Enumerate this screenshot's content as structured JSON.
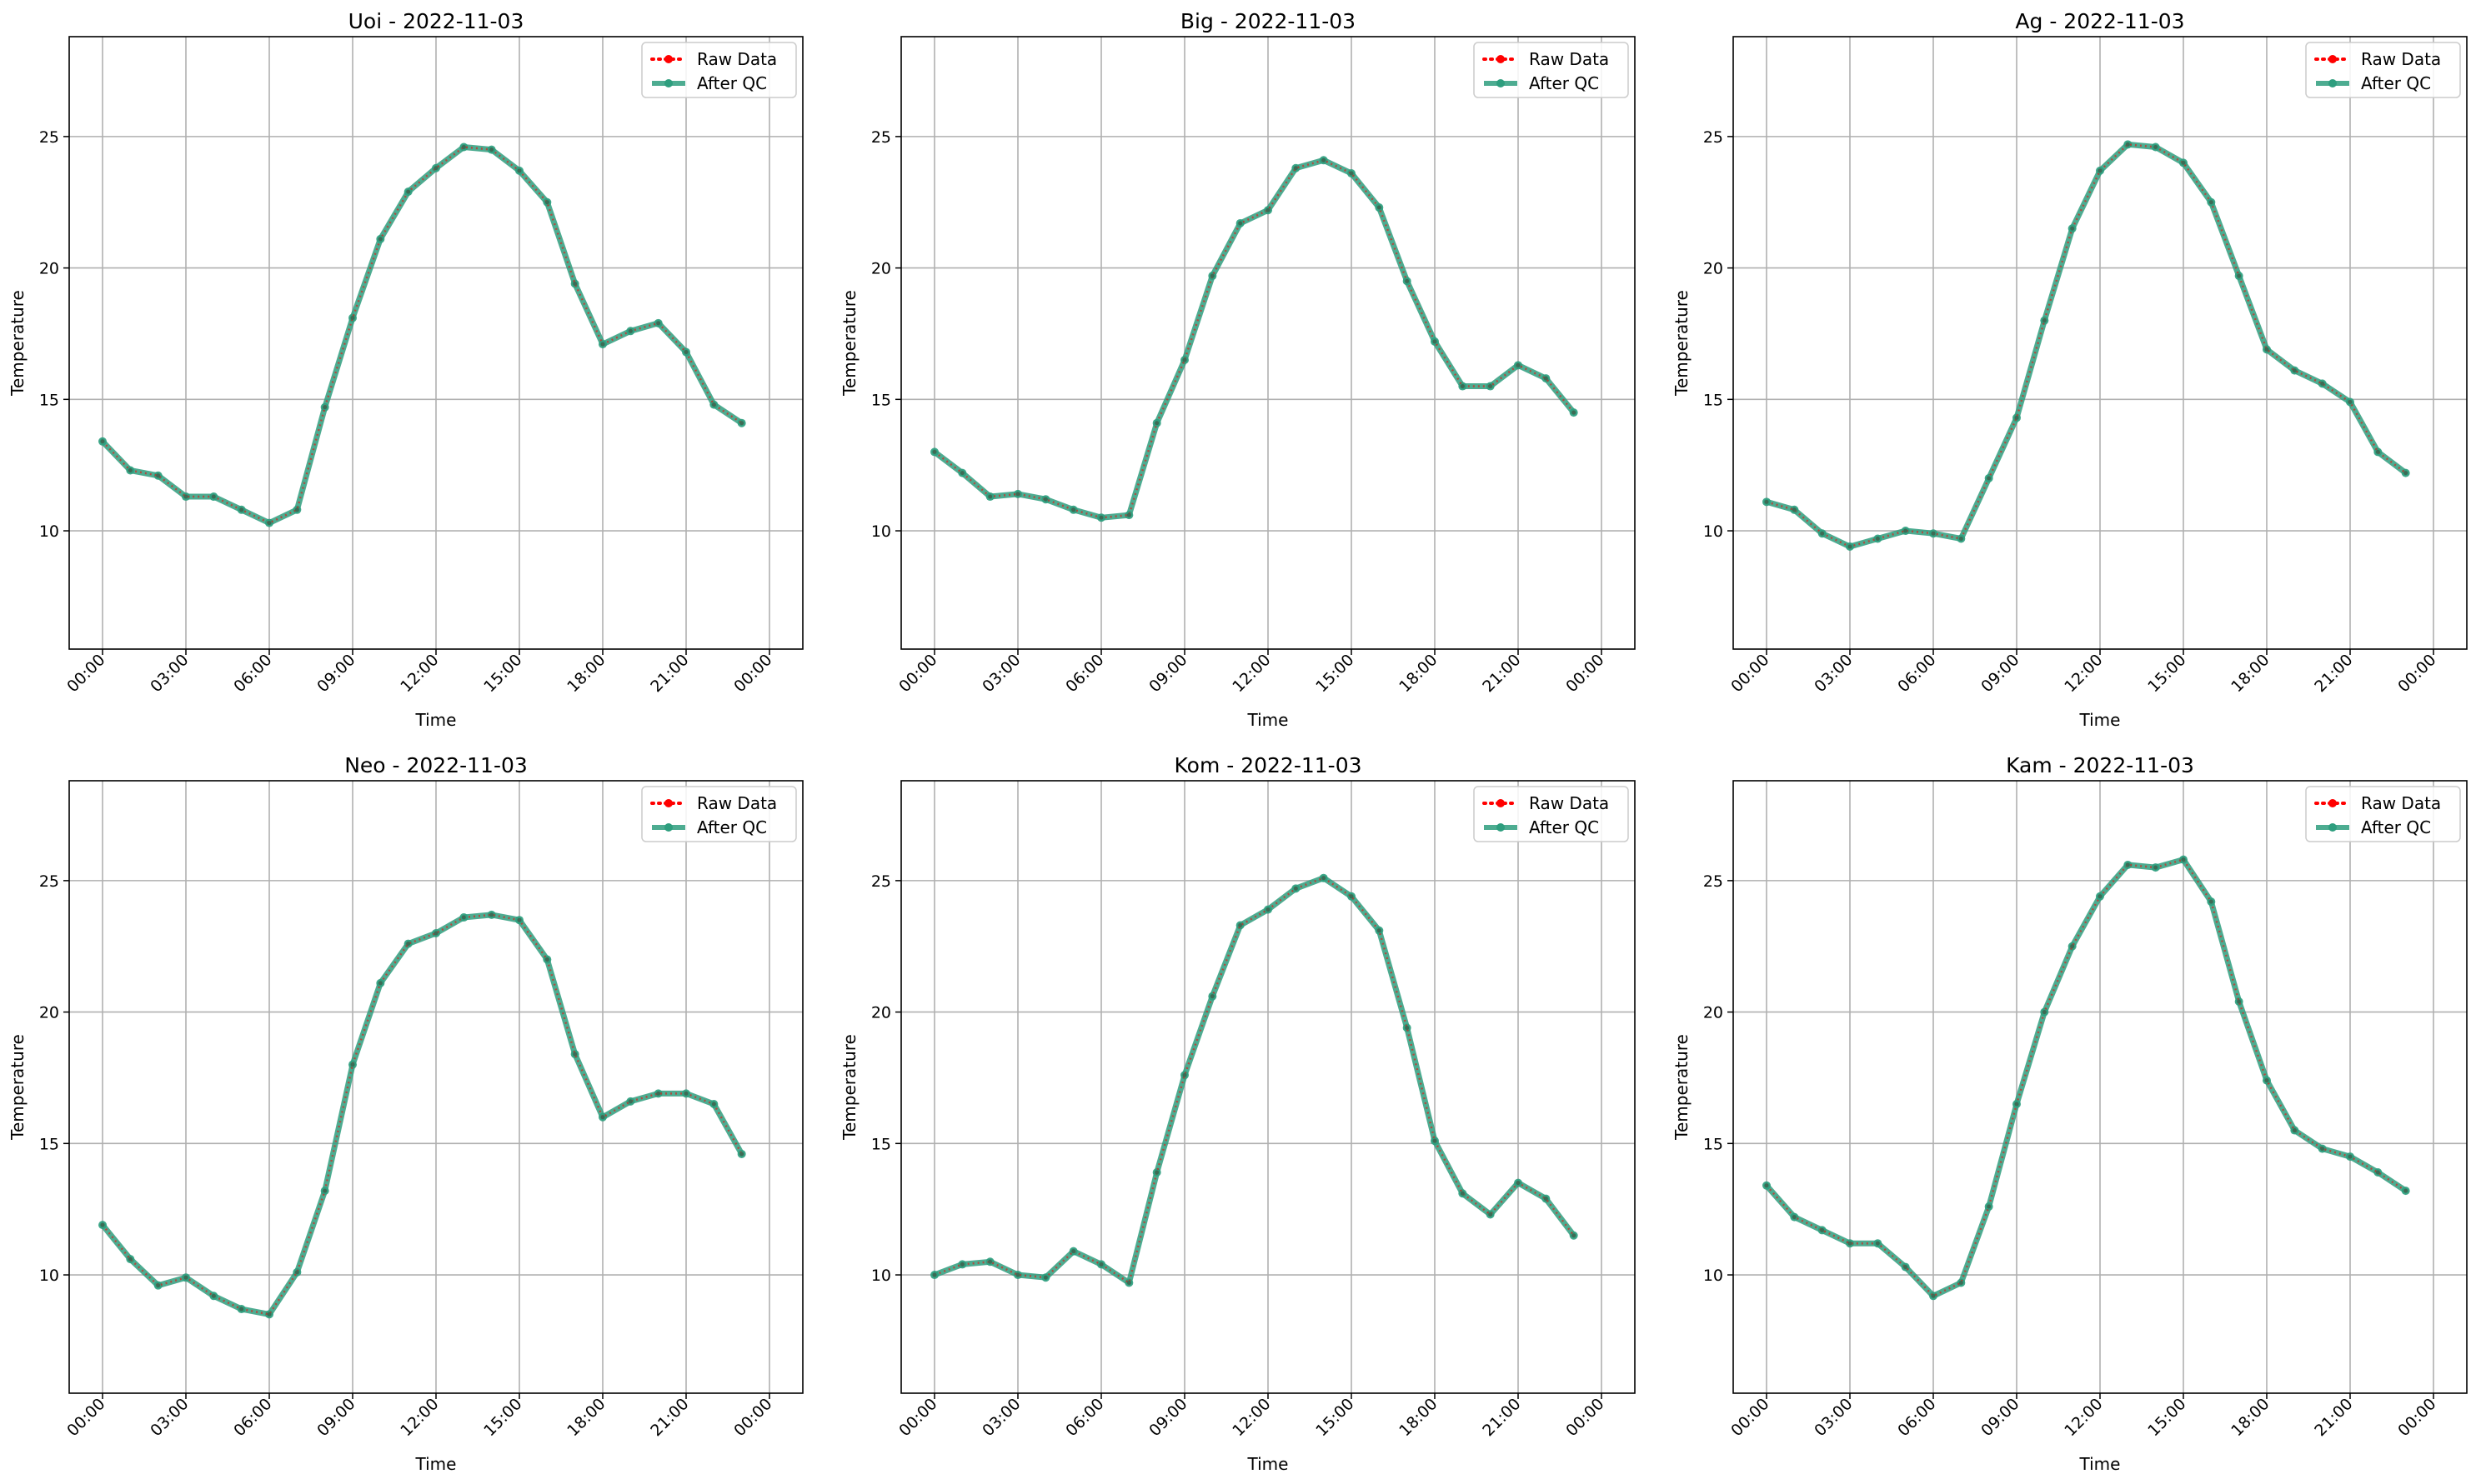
{
  "chart_data": [
    {
      "type": "line",
      "title": "Uoi - 2022-11-03",
      "xlabel": "Time",
      "ylabel": "Temperature",
      "ylim": [
        5.5,
        28.8
      ],
      "yticks": [
        10,
        15,
        20,
        25
      ],
      "xticks": [
        "00:00",
        "03:00",
        "06:00",
        "09:00",
        "12:00",
        "15:00",
        "18:00",
        "21:00",
        "00:00"
      ],
      "grid": true,
      "legend": "top-right",
      "series": [
        {
          "name": "Raw Data",
          "color": "#ff0000",
          "style": "dotted",
          "values": [
            13.4,
            12.3,
            12.1,
            11.3,
            11.3,
            10.8,
            10.3,
            10.8,
            14.7,
            18.1,
            21.1,
            22.9,
            23.8,
            24.6,
            24.5,
            23.7,
            22.5,
            19.4,
            17.1,
            17.6,
            17.9,
            16.8,
            14.8,
            14.1
          ]
        },
        {
          "name": "After QC",
          "color": "#2e9e7e",
          "style": "solid",
          "values": [
            13.4,
            12.3,
            12.1,
            11.3,
            11.3,
            10.8,
            10.3,
            10.8,
            14.7,
            18.1,
            21.1,
            22.9,
            23.8,
            24.6,
            24.5,
            23.7,
            22.5,
            19.4,
            17.1,
            17.6,
            17.9,
            16.8,
            14.8,
            14.1
          ]
        }
      ]
    },
    {
      "type": "line",
      "title": "Big - 2022-11-03",
      "xlabel": "Time",
      "ylabel": "Temperature",
      "ylim": [
        5.5,
        28.8
      ],
      "yticks": [
        10,
        15,
        20,
        25
      ],
      "xticks": [
        "00:00",
        "03:00",
        "06:00",
        "09:00",
        "12:00",
        "15:00",
        "18:00",
        "21:00",
        "00:00"
      ],
      "grid": true,
      "legend": "top-right",
      "series": [
        {
          "name": "Raw Data",
          "color": "#ff0000",
          "style": "dotted",
          "values": [
            13.0,
            12.2,
            11.3,
            11.4,
            11.2,
            10.8,
            10.5,
            10.6,
            14.1,
            16.5,
            19.7,
            21.7,
            22.2,
            23.8,
            24.1,
            23.6,
            22.3,
            19.5,
            17.2,
            15.5,
            15.5,
            16.3,
            15.8,
            14.5
          ]
        },
        {
          "name": "After QC",
          "color": "#2e9e7e",
          "style": "solid",
          "values": [
            13.0,
            12.2,
            11.3,
            11.4,
            11.2,
            10.8,
            10.5,
            10.6,
            14.1,
            16.5,
            19.7,
            21.7,
            22.2,
            23.8,
            24.1,
            23.6,
            22.3,
            19.5,
            17.2,
            15.5,
            15.5,
            16.3,
            15.8,
            14.5
          ]
        }
      ]
    },
    {
      "type": "line",
      "title": "Ag - 2022-11-03",
      "xlabel": "Time",
      "ylabel": "Temperature",
      "ylim": [
        5.5,
        28.8
      ],
      "yticks": [
        10,
        15,
        20,
        25
      ],
      "xticks": [
        "00:00",
        "03:00",
        "06:00",
        "09:00",
        "12:00",
        "15:00",
        "18:00",
        "21:00",
        "00:00"
      ],
      "grid": true,
      "legend": "top-right",
      "series": [
        {
          "name": "Raw Data",
          "color": "#ff0000",
          "style": "dotted",
          "values": [
            11.1,
            10.8,
            9.9,
            9.4,
            9.7,
            10.0,
            9.9,
            9.7,
            12.0,
            14.3,
            18.0,
            21.5,
            23.7,
            24.7,
            24.6,
            24.0,
            22.5,
            19.7,
            16.9,
            16.1,
            15.6,
            14.9,
            13.0,
            12.2
          ]
        },
        {
          "name": "After QC",
          "color": "#2e9e7e",
          "style": "solid",
          "values": [
            11.1,
            10.8,
            9.9,
            9.4,
            9.7,
            10.0,
            9.9,
            9.7,
            12.0,
            14.3,
            18.0,
            21.5,
            23.7,
            24.7,
            24.6,
            24.0,
            22.5,
            19.7,
            16.9,
            16.1,
            15.6,
            14.9,
            13.0,
            12.2
          ]
        }
      ]
    },
    {
      "type": "line",
      "title": "Neo - 2022-11-03",
      "xlabel": "Time",
      "ylabel": "Temperature",
      "ylim": [
        5.5,
        28.8
      ],
      "yticks": [
        10,
        15,
        20,
        25
      ],
      "xticks": [
        "00:00",
        "03:00",
        "06:00",
        "09:00",
        "12:00",
        "15:00",
        "18:00",
        "21:00",
        "00:00"
      ],
      "grid": true,
      "legend": "top-right",
      "series": [
        {
          "name": "Raw Data",
          "color": "#ff0000",
          "style": "dotted",
          "values": [
            11.9,
            10.6,
            9.6,
            9.9,
            9.2,
            8.7,
            8.5,
            10.1,
            13.2,
            18.0,
            21.1,
            22.6,
            23.0,
            23.6,
            23.7,
            23.5,
            22.0,
            18.4,
            16.0,
            16.6,
            16.9,
            16.9,
            16.5,
            14.6
          ]
        },
        {
          "name": "After QC",
          "color": "#2e9e7e",
          "style": "solid",
          "values": [
            11.9,
            10.6,
            9.6,
            9.9,
            9.2,
            8.7,
            8.5,
            10.1,
            13.2,
            18.0,
            21.1,
            22.6,
            23.0,
            23.6,
            23.7,
            23.5,
            22.0,
            18.4,
            16.0,
            16.6,
            16.9,
            16.9,
            16.5,
            14.6
          ]
        }
      ]
    },
    {
      "type": "line",
      "title": "Kom - 2022-11-03",
      "xlabel": "Time",
      "ylabel": "Temperature",
      "ylim": [
        5.5,
        28.8
      ],
      "yticks": [
        10,
        15,
        20,
        25
      ],
      "xticks": [
        "00:00",
        "03:00",
        "06:00",
        "09:00",
        "12:00",
        "15:00",
        "18:00",
        "21:00",
        "00:00"
      ],
      "grid": true,
      "legend": "top-right",
      "series": [
        {
          "name": "Raw Data",
          "color": "#ff0000",
          "style": "dotted",
          "values": [
            10.0,
            10.4,
            10.5,
            10.0,
            9.9,
            10.9,
            10.4,
            9.7,
            13.9,
            17.6,
            20.6,
            23.3,
            23.9,
            24.7,
            25.1,
            24.4,
            23.1,
            19.4,
            15.1,
            13.1,
            12.3,
            13.5,
            12.9,
            11.5
          ]
        },
        {
          "name": "After QC",
          "color": "#2e9e7e",
          "style": "solid",
          "values": [
            10.0,
            10.4,
            10.5,
            10.0,
            9.9,
            10.9,
            10.4,
            9.7,
            13.9,
            17.6,
            20.6,
            23.3,
            23.9,
            24.7,
            25.1,
            24.4,
            23.1,
            19.4,
            15.1,
            13.1,
            12.3,
            13.5,
            12.9,
            11.5
          ]
        }
      ]
    },
    {
      "type": "line",
      "title": "Kam - 2022-11-03",
      "xlabel": "Time",
      "ylabel": "Temperature",
      "ylim": [
        5.5,
        28.8
      ],
      "yticks": [
        10,
        15,
        20,
        25
      ],
      "xticks": [
        "00:00",
        "03:00",
        "06:00",
        "09:00",
        "12:00",
        "15:00",
        "18:00",
        "21:00",
        "00:00"
      ],
      "grid": true,
      "legend": "top-right",
      "series": [
        {
          "name": "Raw Data",
          "color": "#ff0000",
          "style": "dotted",
          "values": [
            13.4,
            12.2,
            11.7,
            11.2,
            11.2,
            10.3,
            9.2,
            9.7,
            12.6,
            16.5,
            20.0,
            22.5,
            24.4,
            25.6,
            25.5,
            25.8,
            24.2,
            20.4,
            17.4,
            15.5,
            14.8,
            14.5,
            13.9,
            13.2
          ]
        },
        {
          "name": "After QC",
          "color": "#2e9e7e",
          "style": "solid",
          "values": [
            13.4,
            12.2,
            11.7,
            11.2,
            11.2,
            10.3,
            9.2,
            9.7,
            12.6,
            16.5,
            20.0,
            22.5,
            24.4,
            25.6,
            25.5,
            25.8,
            24.2,
            20.4,
            17.4,
            15.5,
            14.8,
            14.5,
            13.9,
            13.2
          ]
        }
      ]
    }
  ]
}
